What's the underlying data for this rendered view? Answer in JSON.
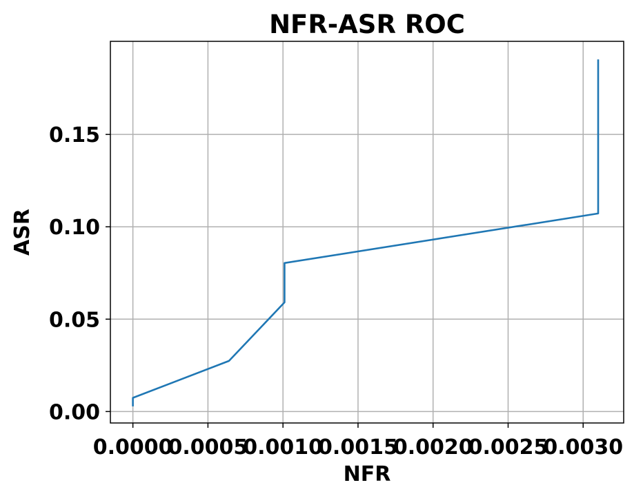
{
  "chart_data": {
    "type": "line",
    "title": "NFR-ASR ROC",
    "xlabel": "NFR",
    "ylabel": "ASR",
    "xlim": [
      -0.00015,
      0.00327
    ],
    "ylim": [
      -0.0062,
      0.2004
    ],
    "x_ticks": [
      {
        "value": 0.0,
        "label": "0.0000"
      },
      {
        "value": 0.0005,
        "label": "0.0005"
      },
      {
        "value": 0.001,
        "label": "0.0010"
      },
      {
        "value": 0.0015,
        "label": "0.0015"
      },
      {
        "value": 0.002,
        "label": "0.0020"
      },
      {
        "value": 0.0025,
        "label": "0.0025"
      },
      {
        "value": 0.003,
        "label": "0.0030"
      }
    ],
    "y_ticks": [
      {
        "value": 0.0,
        "label": "0.00"
      },
      {
        "value": 0.05,
        "label": "0.05"
      },
      {
        "value": 0.1,
        "label": "0.10"
      },
      {
        "value": 0.15,
        "label": "0.15"
      }
    ],
    "grid": true,
    "series": [
      {
        "color": "#1f77b4",
        "points": [
          [
            0.0,
            0.0028
          ],
          [
            0.0,
            0.0074
          ],
          [
            0.00064,
            0.0274
          ],
          [
            0.00101,
            0.0591
          ],
          [
            0.00101,
            0.0804
          ],
          [
            0.0031,
            0.1072
          ],
          [
            0.0031,
            0.1906
          ]
        ]
      }
    ]
  }
}
